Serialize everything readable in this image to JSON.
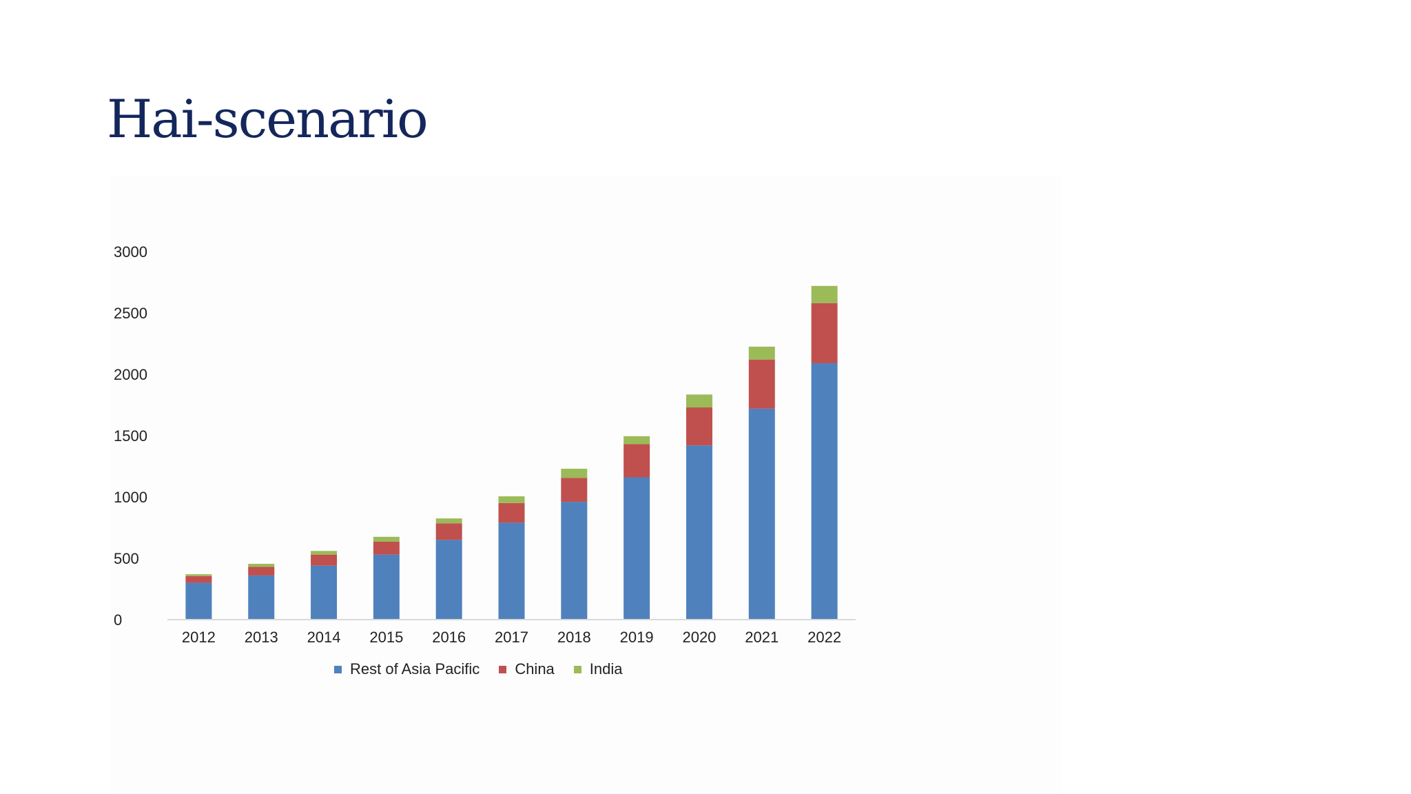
{
  "slide": {
    "title": "Hai-scenario"
  },
  "chart_data": {
    "type": "bar",
    "stacked": true,
    "categories": [
      "2012",
      "2013",
      "2014",
      "2015",
      "2016",
      "2017",
      "2018",
      "2019",
      "2020",
      "2021",
      "2022"
    ],
    "series": [
      {
        "name": "Rest of Asia Pacific",
        "color": "#4f81bd",
        "values": [
          300,
          360,
          440,
          530,
          650,
          790,
          960,
          1160,
          1420,
          1720,
          2090
        ]
      },
      {
        "name": "China",
        "color": "#c0504d",
        "values": [
          55,
          70,
          90,
          105,
          135,
          160,
          195,
          270,
          310,
          400,
          490
        ]
      },
      {
        "name": "India",
        "color": "#9bbb59",
        "values": [
          15,
          25,
          30,
          40,
          40,
          55,
          75,
          65,
          105,
          105,
          140
        ]
      }
    ],
    "ylim": [
      0,
      3000
    ],
    "yticks": [
      0,
      500,
      1000,
      1500,
      2000,
      2500,
      3000
    ],
    "xlabel": "",
    "ylabel": "",
    "grid": false,
    "legend_position": "bottom"
  }
}
